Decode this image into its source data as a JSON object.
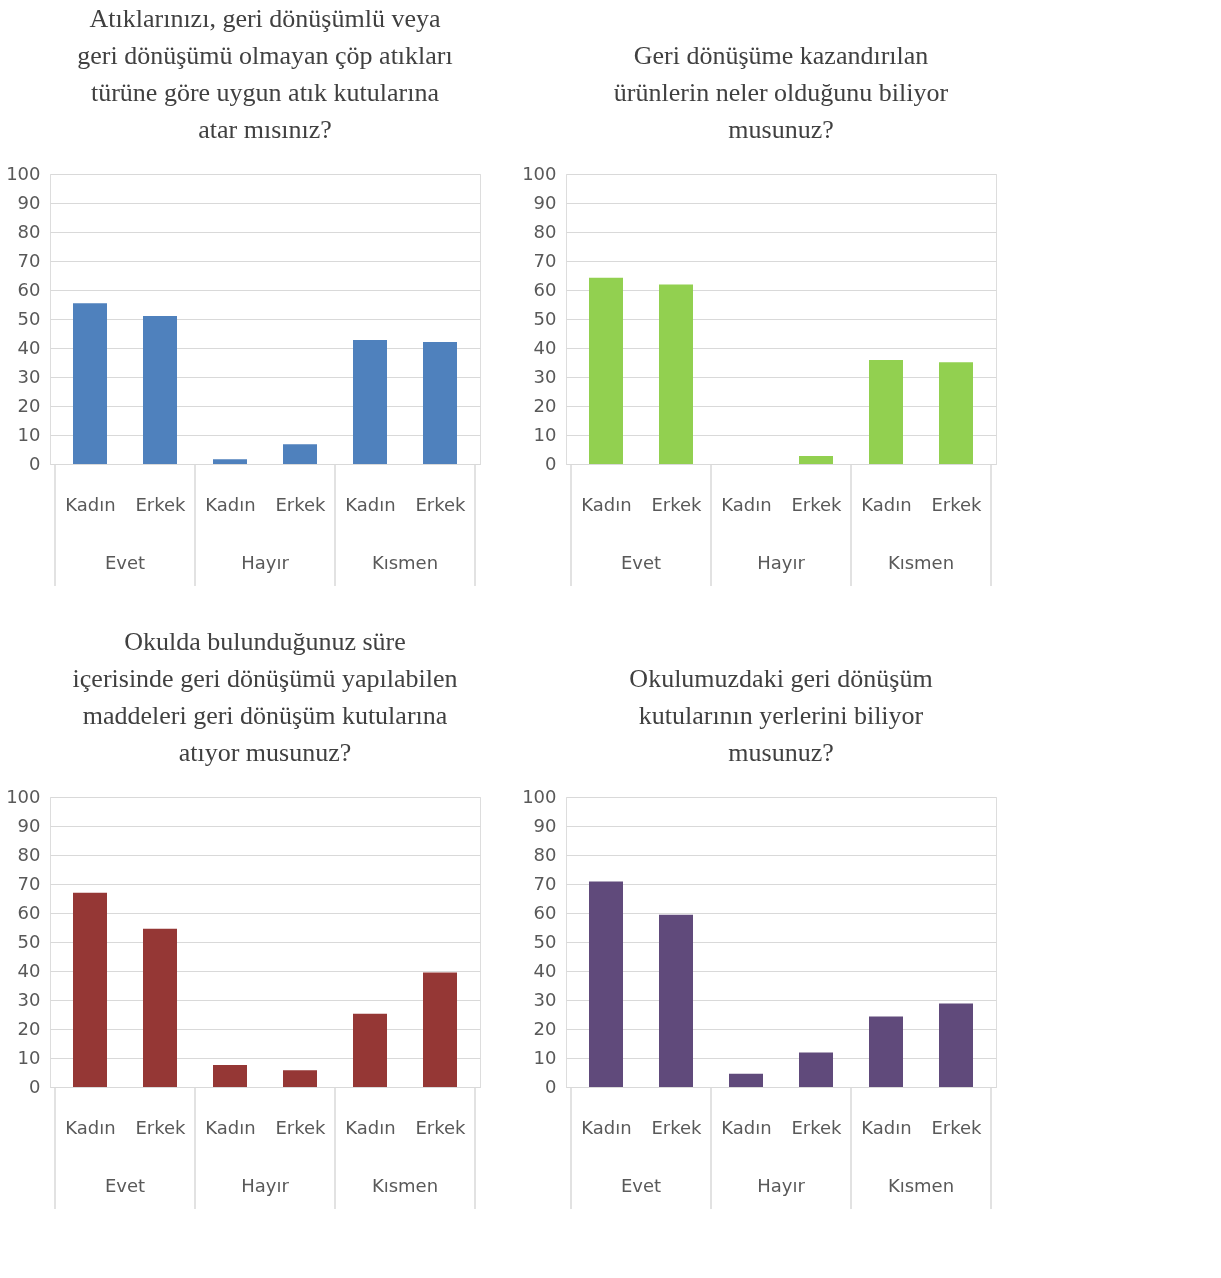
{
  "chart_data": [
    {
      "type": "bar",
      "title": "Atıklarınızı, geri dönüşümlü veya\ngeri dönüşümü olmayan çöp atıkları\ntürüne göre uygun atık kutularına\natar mısınız?",
      "categories": [
        "Kadın",
        "Erkek",
        "Kadın",
        "Erkek",
        "Kadın",
        "Erkek"
      ],
      "annotations": [
        "Evet",
        "Hayır",
        "Kısmen"
      ],
      "values": [
        55.4,
        51,
        1.6,
        6.8,
        42.8,
        42.1
      ],
      "color": "#4f81bd",
      "ylim": [
        0,
        100
      ],
      "yticks": [
        0,
        10,
        20,
        30,
        40,
        50,
        60,
        70,
        80,
        90,
        100
      ],
      "grid": "y"
    },
    {
      "type": "bar",
      "title": "Geri dönüşüme kazandırılan\nürünlerin neler olduğunu biliyor\nmusunuz?",
      "categories": [
        "Kadın",
        "Erkek",
        "Kadın",
        "Erkek",
        "Kadın",
        "Erkek"
      ],
      "annotations": [
        "Evet",
        "Hayır",
        "Kısmen"
      ],
      "values": [
        64.2,
        61.9,
        0,
        2.8,
        35.9,
        35.1
      ],
      "color": "#92d050",
      "ylim": [
        0,
        100
      ],
      "yticks": [
        0,
        10,
        20,
        30,
        40,
        50,
        60,
        70,
        80,
        90,
        100
      ],
      "grid": "y"
    },
    {
      "type": "bar",
      "title": "Okulda bulunduğunuz süre\niçerisinde geri dönüşümü yapılabilen\nmaddeleri geri dönüşüm kutularına\natıyor musunuz?",
      "categories": [
        "Kadın",
        "Erkek",
        "Kadın",
        "Erkek",
        "Kadın",
        "Erkek"
      ],
      "annotations": [
        "Evet",
        "Hayır",
        "Kısmen"
      ],
      "values": [
        67,
        54.6,
        7.6,
        5.8,
        25.3,
        39.5
      ],
      "color": "#953735",
      "ylim": [
        0,
        100
      ],
      "yticks": [
        0,
        10,
        20,
        30,
        40,
        50,
        60,
        70,
        80,
        90,
        100
      ],
      "grid": "y"
    },
    {
      "type": "bar",
      "title": "Okulumuzdaki geri dönüşüm\nkutularının yerlerini biliyor\nmusunuz?",
      "categories": [
        "Kadın",
        "Erkek",
        "Kadın",
        "Erkek",
        "Kadın",
        "Erkek"
      ],
      "annotations": [
        "Evet",
        "Hayır",
        "Kısmen"
      ],
      "values": [
        70.9,
        59.4,
        4.6,
        11.9,
        24.3,
        28.8
      ],
      "color": "#604a7b",
      "ylim": [
        0,
        100
      ],
      "yticks": [
        0,
        10,
        20,
        30,
        40,
        50,
        60,
        70,
        80,
        90,
        100
      ],
      "grid": "y"
    }
  ]
}
